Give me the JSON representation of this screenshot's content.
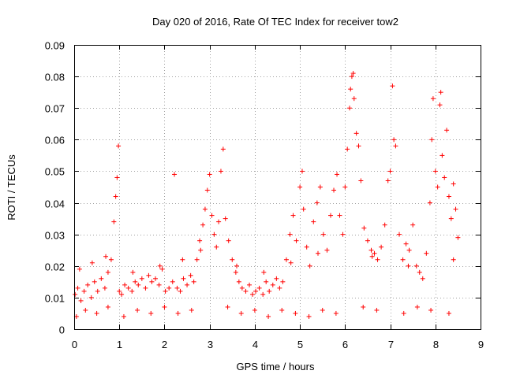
{
  "chart_data": {
    "type": "scatter",
    "title": "Day 020 of 2016, Rate Of TEC Index for receiver tow2",
    "xlabel": "GPS time / hours",
    "ylabel": "ROTI / TECUs",
    "xlim": [
      0,
      9
    ],
    "ylim": [
      0,
      0.09
    ],
    "xticks": [
      "0",
      "1",
      "2",
      "3",
      "4",
      "5",
      "6",
      "7",
      "8",
      "9"
    ],
    "yticks": [
      "0",
      "0.01",
      "0.02",
      "0.03",
      "0.04",
      "0.05",
      "0.06",
      "0.07",
      "0.08",
      "0.09"
    ],
    "grid": true,
    "marker": "+",
    "color": "#ff0000",
    "series": [
      {
        "name": "ROTI",
        "x": [
          0.02,
          0.08,
          0.15,
          0.22,
          0.3,
          0.38,
          0.45,
          0.52,
          0.6,
          0.68,
          0.75,
          0.82,
          0.88,
          0.92,
          0.95,
          0.98,
          1.0,
          1.05,
          1.12,
          1.2,
          1.28,
          1.35,
          1.42,
          1.5,
          1.58,
          1.65,
          1.72,
          1.8,
          1.88,
          1.95,
          2.02,
          2.1,
          2.18,
          2.22,
          2.28,
          2.35,
          2.42,
          2.5,
          2.58,
          2.65,
          2.72,
          2.78,
          2.85,
          2.9,
          2.95,
          3.0,
          3.05,
          3.1,
          3.15,
          3.2,
          3.25,
          3.3,
          3.35,
          3.42,
          3.5,
          3.58,
          3.65,
          3.72,
          3.8,
          3.88,
          3.95,
          4.02,
          4.1,
          4.18,
          4.25,
          4.32,
          4.4,
          4.48,
          4.55,
          4.62,
          4.7,
          4.78,
          4.85,
          4.92,
          5.0,
          5.05,
          5.08,
          5.15,
          5.22,
          5.3,
          5.38,
          5.45,
          5.52,
          5.6,
          5.68,
          5.75,
          5.82,
          5.88,
          5.95,
          6.0,
          6.05,
          6.1,
          6.12,
          6.15,
          6.18,
          6.2,
          6.25,
          6.3,
          6.35,
          6.42,
          6.5,
          6.58,
          6.65,
          6.72,
          6.8,
          6.88,
          6.95,
          7.0,
          7.05,
          7.08,
          7.12,
          7.2,
          7.28,
          7.35,
          7.42,
          7.5,
          7.58,
          7.65,
          7.72,
          7.8,
          7.88,
          7.92,
          7.95,
          8.0,
          8.05,
          8.1,
          8.12,
          8.15,
          8.2,
          8.25,
          8.3,
          8.35,
          8.4,
          8.45,
          8.5,
          0.05,
          0.25,
          0.5,
          0.75,
          1.1,
          1.4,
          1.7,
          2.0,
          2.3,
          2.6,
          3.4,
          3.7,
          4.0,
          4.3,
          4.6,
          4.9,
          5.2,
          5.5,
          5.8,
          6.4,
          6.7,
          7.3,
          7.6,
          7.9,
          8.3,
          0.12,
          0.4,
          0.7,
          1.3,
          1.9,
          2.4,
          2.8,
          3.6,
          4.2,
          4.8,
          5.4,
          6.6,
          7.4,
          8.4
        ],
        "y": [
          0.011,
          0.013,
          0.009,
          0.012,
          0.014,
          0.01,
          0.015,
          0.012,
          0.016,
          0.013,
          0.018,
          0.022,
          0.034,
          0.042,
          0.048,
          0.058,
          0.012,
          0.011,
          0.014,
          0.013,
          0.012,
          0.015,
          0.014,
          0.016,
          0.013,
          0.017,
          0.015,
          0.016,
          0.014,
          0.019,
          0.012,
          0.013,
          0.015,
          0.049,
          0.013,
          0.012,
          0.016,
          0.014,
          0.017,
          0.015,
          0.022,
          0.028,
          0.033,
          0.038,
          0.044,
          0.049,
          0.036,
          0.03,
          0.026,
          0.034,
          0.05,
          0.057,
          0.035,
          0.028,
          0.022,
          0.018,
          0.015,
          0.013,
          0.012,
          0.014,
          0.011,
          0.012,
          0.013,
          0.011,
          0.015,
          0.012,
          0.014,
          0.016,
          0.013,
          0.015,
          0.022,
          0.03,
          0.036,
          0.028,
          0.045,
          0.05,
          0.038,
          0.026,
          0.02,
          0.034,
          0.04,
          0.045,
          0.03,
          0.025,
          0.036,
          0.044,
          0.049,
          0.036,
          0.03,
          0.045,
          0.057,
          0.07,
          0.076,
          0.08,
          0.081,
          0.073,
          0.062,
          0.058,
          0.047,
          0.032,
          0.028,
          0.025,
          0.024,
          0.022,
          0.026,
          0.033,
          0.047,
          0.05,
          0.077,
          0.06,
          0.058,
          0.03,
          0.022,
          0.027,
          0.025,
          0.033,
          0.02,
          0.018,
          0.016,
          0.024,
          0.04,
          0.06,
          0.073,
          0.05,
          0.045,
          0.071,
          0.075,
          0.055,
          0.048,
          0.063,
          0.042,
          0.035,
          0.046,
          0.038,
          0.029,
          0.004,
          0.006,
          0.005,
          0.007,
          0.004,
          0.006,
          0.005,
          0.007,
          0.005,
          0.006,
          0.007,
          0.005,
          0.006,
          0.004,
          0.006,
          0.005,
          0.004,
          0.006,
          0.005,
          0.007,
          0.006,
          0.005,
          0.007,
          0.006,
          0.005,
          0.019,
          0.021,
          0.023,
          0.018,
          0.02,
          0.022,
          0.025,
          0.02,
          0.018,
          0.021,
          0.024,
          0.023,
          0.02,
          0.022
        ]
      }
    ]
  }
}
